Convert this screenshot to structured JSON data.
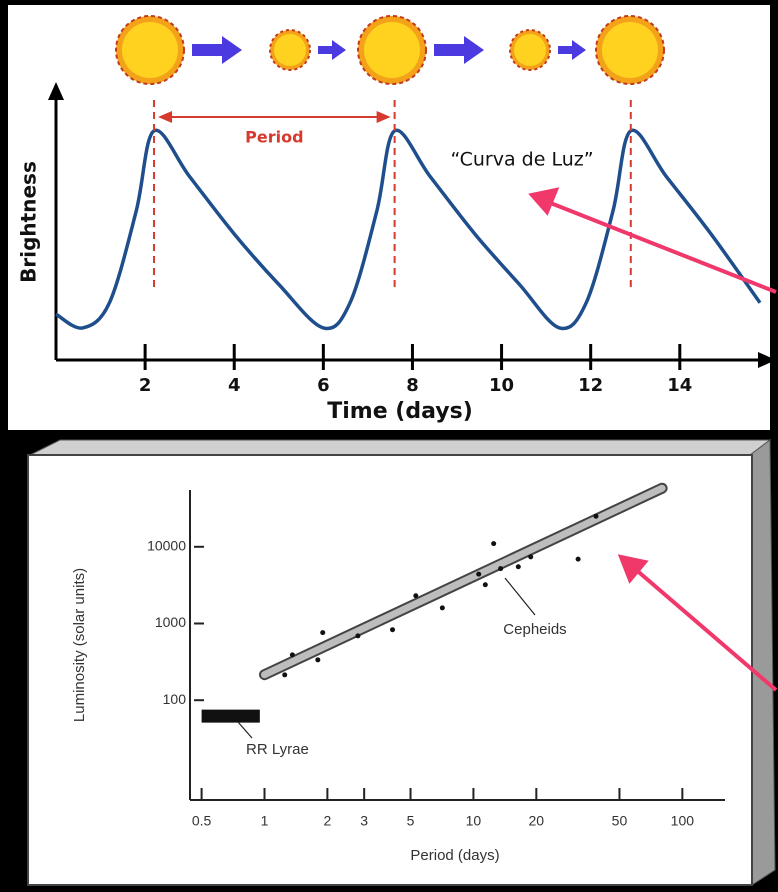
{
  "chart_data": [
    {
      "type": "line",
      "xlabel": "Time (days)",
      "ylabel": "Brightness",
      "x": [
        0,
        0.6,
        1.2,
        1.8,
        2.2,
        3,
        4,
        5,
        6,
        6.6,
        7.2,
        7.6,
        8.4,
        9.4,
        10.4,
        11.3,
        11.9,
        12.5,
        12.9,
        13.7,
        14.7,
        15.8
      ],
      "values": [
        0.2,
        0.14,
        0.25,
        0.65,
        1.0,
        0.8,
        0.55,
        0.33,
        0.14,
        0.25,
        0.65,
        1.0,
        0.8,
        0.55,
        0.33,
        0.14,
        0.25,
        0.65,
        1.0,
        0.8,
        0.55,
        0.25
      ],
      "color": "#1f4e8c",
      "xlim": [
        0,
        15.8
      ],
      "xticks": [
        2,
        4,
        6,
        8,
        10,
        12,
        14
      ],
      "ylim": [
        0,
        1.2
      ],
      "annotations": [
        "Period",
        "“Curva de Luz”"
      ]
    },
    {
      "type": "scatter",
      "xlabel": "Period (days)",
      "ylabel": "Luminosity (solar units)",
      "xscale": "log",
      "yscale": "log",
      "xlim": [
        0.44,
        160
      ],
      "xticks": [
        0.5,
        1,
        2,
        3,
        5,
        10,
        20,
        50,
        100
      ],
      "ylim": [
        5,
        55000
      ],
      "yticks": [
        100,
        1000,
        10000
      ],
      "series": [
        {
          "name": "Cepheids",
          "color": "#111111",
          "x": [
            1.25,
            1.36,
            1.8,
            1.9,
            2.8,
            4.1,
            5.3,
            7.1,
            10.6,
            11.4,
            12.5,
            13.5,
            16.4,
            18.8,
            31.7,
            38.6
          ],
          "values": [
            214,
            390,
            336,
            760,
            690,
            830,
            2300,
            1600,
            4400,
            3200,
            11000,
            5200,
            5500,
            7400,
            6900,
            25000
          ],
          "trend": {
            "x": [
              1,
              80
            ],
            "values": [
              215,
              58000
            ]
          }
        },
        {
          "name": "RR Lyrae",
          "color": "#111111",
          "x": [
            0.5,
            0.95
          ],
          "values": [
            62,
            62
          ]
        }
      ]
    }
  ]
}
